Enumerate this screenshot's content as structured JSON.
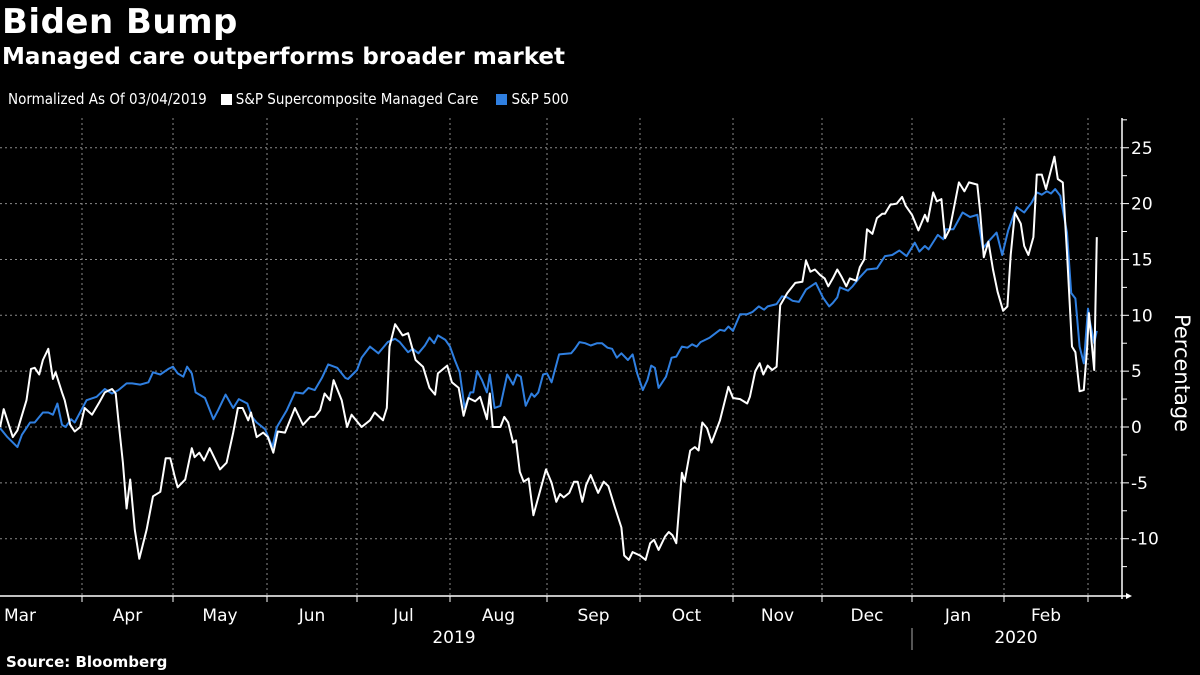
{
  "header": {
    "title": "Biden Bump",
    "subtitle": "Managed care outperforms broader market"
  },
  "legend": {
    "note": "Normalized As Of 03/04/2019",
    "items": [
      {
        "label": "S&P Supercomposite Managed Care",
        "color": "#ffffff"
      },
      {
        "label": "S&P 500",
        "color": "#2f7fe0"
      }
    ]
  },
  "footer": {
    "source": "Source: Bloomberg"
  },
  "chart_data": {
    "type": "line",
    "title": "Biden Bump",
    "subtitle": "Managed care outperforms broader market",
    "xlabel": "",
    "ylabel": "Percentage",
    "x_units": "months since 2019-03-01",
    "xlim": [
      0.1,
      12.1
    ],
    "ylim": [
      -15,
      27.5
    ],
    "y_ticks": [
      -10,
      -5,
      0,
      5,
      10,
      15,
      20,
      25
    ],
    "x_tick_labels": [
      "Mar",
      "Apr",
      "May",
      "Jun",
      "Jul",
      "Aug",
      "Sep",
      "Oct",
      "Nov",
      "Dec",
      "Jan",
      "Feb"
    ],
    "year_labels": [
      "2019",
      "2020"
    ],
    "grid": true,
    "legend_position": "top-left",
    "series": [
      {
        "name": "S&P Supercomposite Managed Care",
        "color": "#ffffff",
        "x": [
          0.1,
          0.14,
          0.24,
          0.29,
          0.39,
          0.44,
          0.48,
          0.53,
          0.57,
          0.63,
          0.68,
          0.71,
          0.78,
          0.81,
          0.87,
          0.92,
          0.98,
          1.03,
          1.11,
          1.19,
          1.25,
          1.33,
          1.37,
          1.4,
          1.45,
          1.49,
          1.53,
          1.58,
          1.63,
          1.71,
          1.78,
          1.86,
          1.92,
          1.97,
          2.02,
          2.05,
          2.13,
          2.2,
          2.23,
          2.28,
          2.33,
          2.39,
          2.5,
          2.57,
          2.64,
          2.69,
          2.74,
          2.8,
          2.83,
          2.89,
          2.96,
          3.01,
          3.07,
          3.12,
          3.2,
          3.31,
          3.4,
          3.48,
          3.53,
          3.59,
          3.64,
          3.7,
          3.74,
          3.83,
          3.89,
          3.94,
          4.05,
          4.14,
          4.19,
          4.28,
          4.32,
          4.35,
          4.41,
          4.49,
          4.55,
          4.63,
          4.71,
          4.78,
          4.84,
          4.87,
          4.97,
          5.02,
          5.09,
          5.14,
          5.19,
          5.26,
          5.31,
          5.38,
          5.41,
          5.44,
          5.52,
          5.56,
          5.6,
          5.65,
          5.68,
          5.72,
          5.76,
          5.81,
          5.86,
          5.91,
          5.99,
          6.05,
          6.1,
          6.14,
          6.18,
          6.24,
          6.29,
          6.33,
          6.38,
          6.42,
          6.47,
          6.55,
          6.61,
          6.66,
          6.73,
          6.8,
          6.83,
          6.88,
          6.92,
          7.0,
          7.06,
          7.11,
          7.15,
          7.2,
          7.27,
          7.31,
          7.35,
          7.39,
          7.45,
          7.48,
          7.54,
          7.59,
          7.63,
          7.67,
          7.72,
          7.77,
          7.86,
          7.95,
          8.0,
          8.08,
          8.16,
          8.19,
          8.25,
          8.3,
          8.34,
          8.39,
          8.44,
          8.49,
          8.53,
          8.61,
          8.7,
          8.78,
          8.82,
          8.87,
          8.92,
          8.98,
          9.03,
          9.07,
          9.12,
          9.17,
          9.22,
          9.27,
          9.31,
          9.38,
          9.42,
          9.47,
          9.5,
          9.56,
          9.61,
          9.67,
          9.7,
          9.76,
          9.83,
          9.89,
          9.93,
          10.0,
          10.07,
          10.14,
          10.17,
          10.23,
          10.27,
          10.32,
          10.36,
          10.41,
          10.47,
          10.51,
          10.57,
          10.62,
          10.71,
          10.74,
          10.78,
          10.83,
          10.88,
          10.93,
          10.99,
          11.04,
          11.08,
          11.13,
          11.2,
          11.24,
          11.29,
          11.35,
          11.39,
          11.45,
          11.5,
          11.6,
          11.64,
          11.7,
          11.75,
          11.81,
          11.85,
          11.9,
          11.95,
          11.99,
          12.01,
          12.07,
          12.1
        ],
        "y": [
          0.0,
          1.6,
          -0.9,
          -0.3,
          2.4,
          5.2,
          5.3,
          4.7,
          6.0,
          7.0,
          4.3,
          4.9,
          3.1,
          2.4,
          0.2,
          -0.4,
          0.0,
          1.7,
          1.1,
          2.2,
          3.1,
          3.4,
          3.0,
          0.6,
          -3.2,
          -7.3,
          -4.7,
          -9.2,
          -11.8,
          -9.2,
          -6.2,
          -5.8,
          -2.8,
          -2.8,
          -4.5,
          -5.4,
          -4.7,
          -1.9,
          -2.7,
          -2.3,
          -3.0,
          -1.9,
          -3.8,
          -3.2,
          -0.5,
          1.7,
          1.7,
          0.6,
          1.3,
          -0.9,
          -0.5,
          -0.9,
          -2.3,
          -0.4,
          -0.5,
          1.7,
          0.2,
          0.9,
          0.9,
          1.5,
          3.0,
          2.4,
          4.2,
          2.4,
          0.0,
          1.1,
          0.0,
          0.6,
          1.3,
          0.6,
          1.7,
          7.2,
          9.2,
          8.2,
          8.4,
          6.0,
          5.4,
          3.5,
          2.9,
          4.8,
          5.5,
          4.0,
          3.5,
          1.0,
          2.6,
          2.3,
          2.7,
          0.7,
          3.0,
          0.0,
          0.0,
          0.9,
          0.4,
          -1.4,
          -1.2,
          -4.0,
          -4.9,
          -4.6,
          -7.9,
          -6.3,
          -3.8,
          -5.0,
          -6.7,
          -6.0,
          -6.3,
          -5.9,
          -4.9,
          -4.9,
          -6.7,
          -5.2,
          -4.3,
          -5.9,
          -4.9,
          -5.3,
          -7.2,
          -9.0,
          -11.5,
          -11.9,
          -11.2,
          -11.5,
          -11.9,
          -10.4,
          -10.1,
          -11.0,
          -9.8,
          -9.4,
          -9.7,
          -10.4,
          -4.1,
          -4.9,
          -2.1,
          -1.8,
          -2.1,
          0.4,
          -0.1,
          -1.4,
          0.6,
          3.6,
          2.6,
          2.5,
          2.1,
          2.7,
          5.0,
          5.7,
          4.7,
          5.5,
          5.1,
          5.4,
          10.9,
          12.0,
          12.9,
          13.0,
          14.9,
          13.9,
          14.1,
          13.6,
          13.3,
          12.6,
          13.3,
          14.1,
          13.4,
          12.6,
          13.3,
          13.1,
          14.3,
          15.0,
          17.7,
          17.3,
          18.7,
          19.1,
          19.1,
          19.9,
          20.0,
          20.6,
          19.8,
          19.0,
          17.6,
          19.0,
          18.4,
          21.0,
          20.2,
          20.4,
          16.9,
          17.7,
          20.2,
          21.9,
          21.1,
          21.9,
          21.7,
          19.3,
          15.2,
          16.6,
          14.1,
          12.1,
          10.4,
          10.8,
          15.4,
          19.2,
          18.2,
          16.2,
          15.4,
          17.0,
          22.6,
          22.6,
          21.3,
          24.2,
          22.2,
          21.9,
          15.6,
          7.2,
          6.7,
          3.2,
          3.3,
          7.2,
          10.2,
          5.1,
          17.0
        ]
      },
      {
        "name": "S&P 500",
        "color": "#2f7fe0",
        "x": [
          0.1,
          0.18,
          0.29,
          0.34,
          0.43,
          0.48,
          0.57,
          0.63,
          0.68,
          0.73,
          0.78,
          0.82,
          0.88,
          0.92,
          1.05,
          1.16,
          1.25,
          1.33,
          1.4,
          1.49,
          1.55,
          1.64,
          1.73,
          1.78,
          1.86,
          1.95,
          2.0,
          2.05,
          2.11,
          2.15,
          2.2,
          2.24,
          2.34,
          2.43,
          2.48,
          2.56,
          2.64,
          2.7,
          2.79,
          2.84,
          2.89,
          2.98,
          3.06,
          3.11,
          3.22,
          3.31,
          3.4,
          3.46,
          3.53,
          3.61,
          3.68,
          3.78,
          3.87,
          3.9,
          4.0,
          4.05,
          4.14,
          4.23,
          4.33,
          4.41,
          4.46,
          4.55,
          4.6,
          4.66,
          4.73,
          4.78,
          4.83,
          4.87,
          4.95,
          5.0,
          5.05,
          5.1,
          5.15,
          5.21,
          5.24,
          5.28,
          5.33,
          5.38,
          5.41,
          5.46,
          5.52,
          5.59,
          5.65,
          5.69,
          5.73,
          5.78,
          5.84,
          5.87,
          5.91,
          5.96,
          6.0,
          6.05,
          6.13,
          6.26,
          6.3,
          6.35,
          6.41,
          6.47,
          6.54,
          6.59,
          6.65,
          6.7,
          6.75,
          6.8,
          6.87,
          6.92,
          6.97,
          7.03,
          7.08,
          7.12,
          7.16,
          7.2,
          7.28,
          7.34,
          7.39,
          7.45,
          7.51,
          7.56,
          7.61,
          7.65,
          7.75,
          7.86,
          7.91,
          7.95,
          8.0,
          8.08,
          8.16,
          8.22,
          8.29,
          8.35,
          8.39,
          8.49,
          8.55,
          8.61,
          8.67,
          8.74,
          8.82,
          8.93,
          9.01,
          9.08,
          9.12,
          9.17,
          9.2,
          9.29,
          9.34,
          9.42,
          9.5,
          9.61,
          9.7,
          9.78,
          9.86,
          9.94,
          10.03,
          10.08,
          10.14,
          10.18,
          10.28,
          10.34,
          10.37,
          10.45,
          10.55,
          10.63,
          10.71,
          10.77,
          10.83,
          10.92,
          10.98,
          11.05,
          11.15,
          11.24,
          11.33,
          11.39,
          11.45,
          11.51,
          11.56,
          11.61,
          11.67,
          11.75,
          11.8,
          11.85,
          11.9,
          11.95,
          12.0,
          12.02,
          12.07,
          12.1
        ],
        "y": [
          -0.1,
          -0.9,
          -1.8,
          -0.7,
          0.4,
          0.4,
          1.3,
          1.3,
          1.1,
          2.1,
          0.2,
          0.0,
          0.7,
          0.4,
          2.4,
          2.7,
          3.4,
          3.0,
          3.3,
          3.9,
          3.9,
          3.8,
          4.0,
          4.9,
          4.7,
          5.2,
          5.4,
          4.8,
          4.5,
          5.4,
          4.8,
          3.1,
          2.6,
          0.7,
          1.5,
          2.9,
          1.7,
          2.5,
          2.1,
          0.9,
          0.4,
          -0.2,
          -1.8,
          0.0,
          1.5,
          3.1,
          3.0,
          3.5,
          3.3,
          4.4,
          5.6,
          5.3,
          4.4,
          4.3,
          5.1,
          6.2,
          7.2,
          6.6,
          7.6,
          7.9,
          7.6,
          6.7,
          7.0,
          6.6,
          7.3,
          8.0,
          7.5,
          8.2,
          7.8,
          7.2,
          6.0,
          4.9,
          1.7,
          3.1,
          3.1,
          5.0,
          4.2,
          3.1,
          4.7,
          1.7,
          1.9,
          4.7,
          3.8,
          4.7,
          4.5,
          1.9,
          3.0,
          2.7,
          3.1,
          4.7,
          4.8,
          4.0,
          6.5,
          6.6,
          7.0,
          7.6,
          7.5,
          7.3,
          7.5,
          7.5,
          7.1,
          7.0,
          6.2,
          6.6,
          6.0,
          6.5,
          4.8,
          3.3,
          4.2,
          5.5,
          5.3,
          3.5,
          4.5,
          6.2,
          6.3,
          7.2,
          7.1,
          7.4,
          7.2,
          7.6,
          8.0,
          8.7,
          8.6,
          9.0,
          8.6,
          10.1,
          10.1,
          10.3,
          10.8,
          10.5,
          10.8,
          11.0,
          11.7,
          11.6,
          11.3,
          11.2,
          12.3,
          12.9,
          11.6,
          10.8,
          11.1,
          11.6,
          12.5,
          12.2,
          12.6,
          13.4,
          14.1,
          14.2,
          15.3,
          15.4,
          15.8,
          15.3,
          16.5,
          15.7,
          16.2,
          15.9,
          17.2,
          16.8,
          17.7,
          17.7,
          19.2,
          18.8,
          19.0,
          16.0,
          16.6,
          17.4,
          15.4,
          17.6,
          19.7,
          19.2,
          20.1,
          21.0,
          20.8,
          21.1,
          20.9,
          21.3,
          20.7,
          17.4,
          12.0,
          11.5,
          7.2,
          5.7,
          10.6,
          9.5,
          7.5,
          8.6
        ]
      }
    ]
  }
}
